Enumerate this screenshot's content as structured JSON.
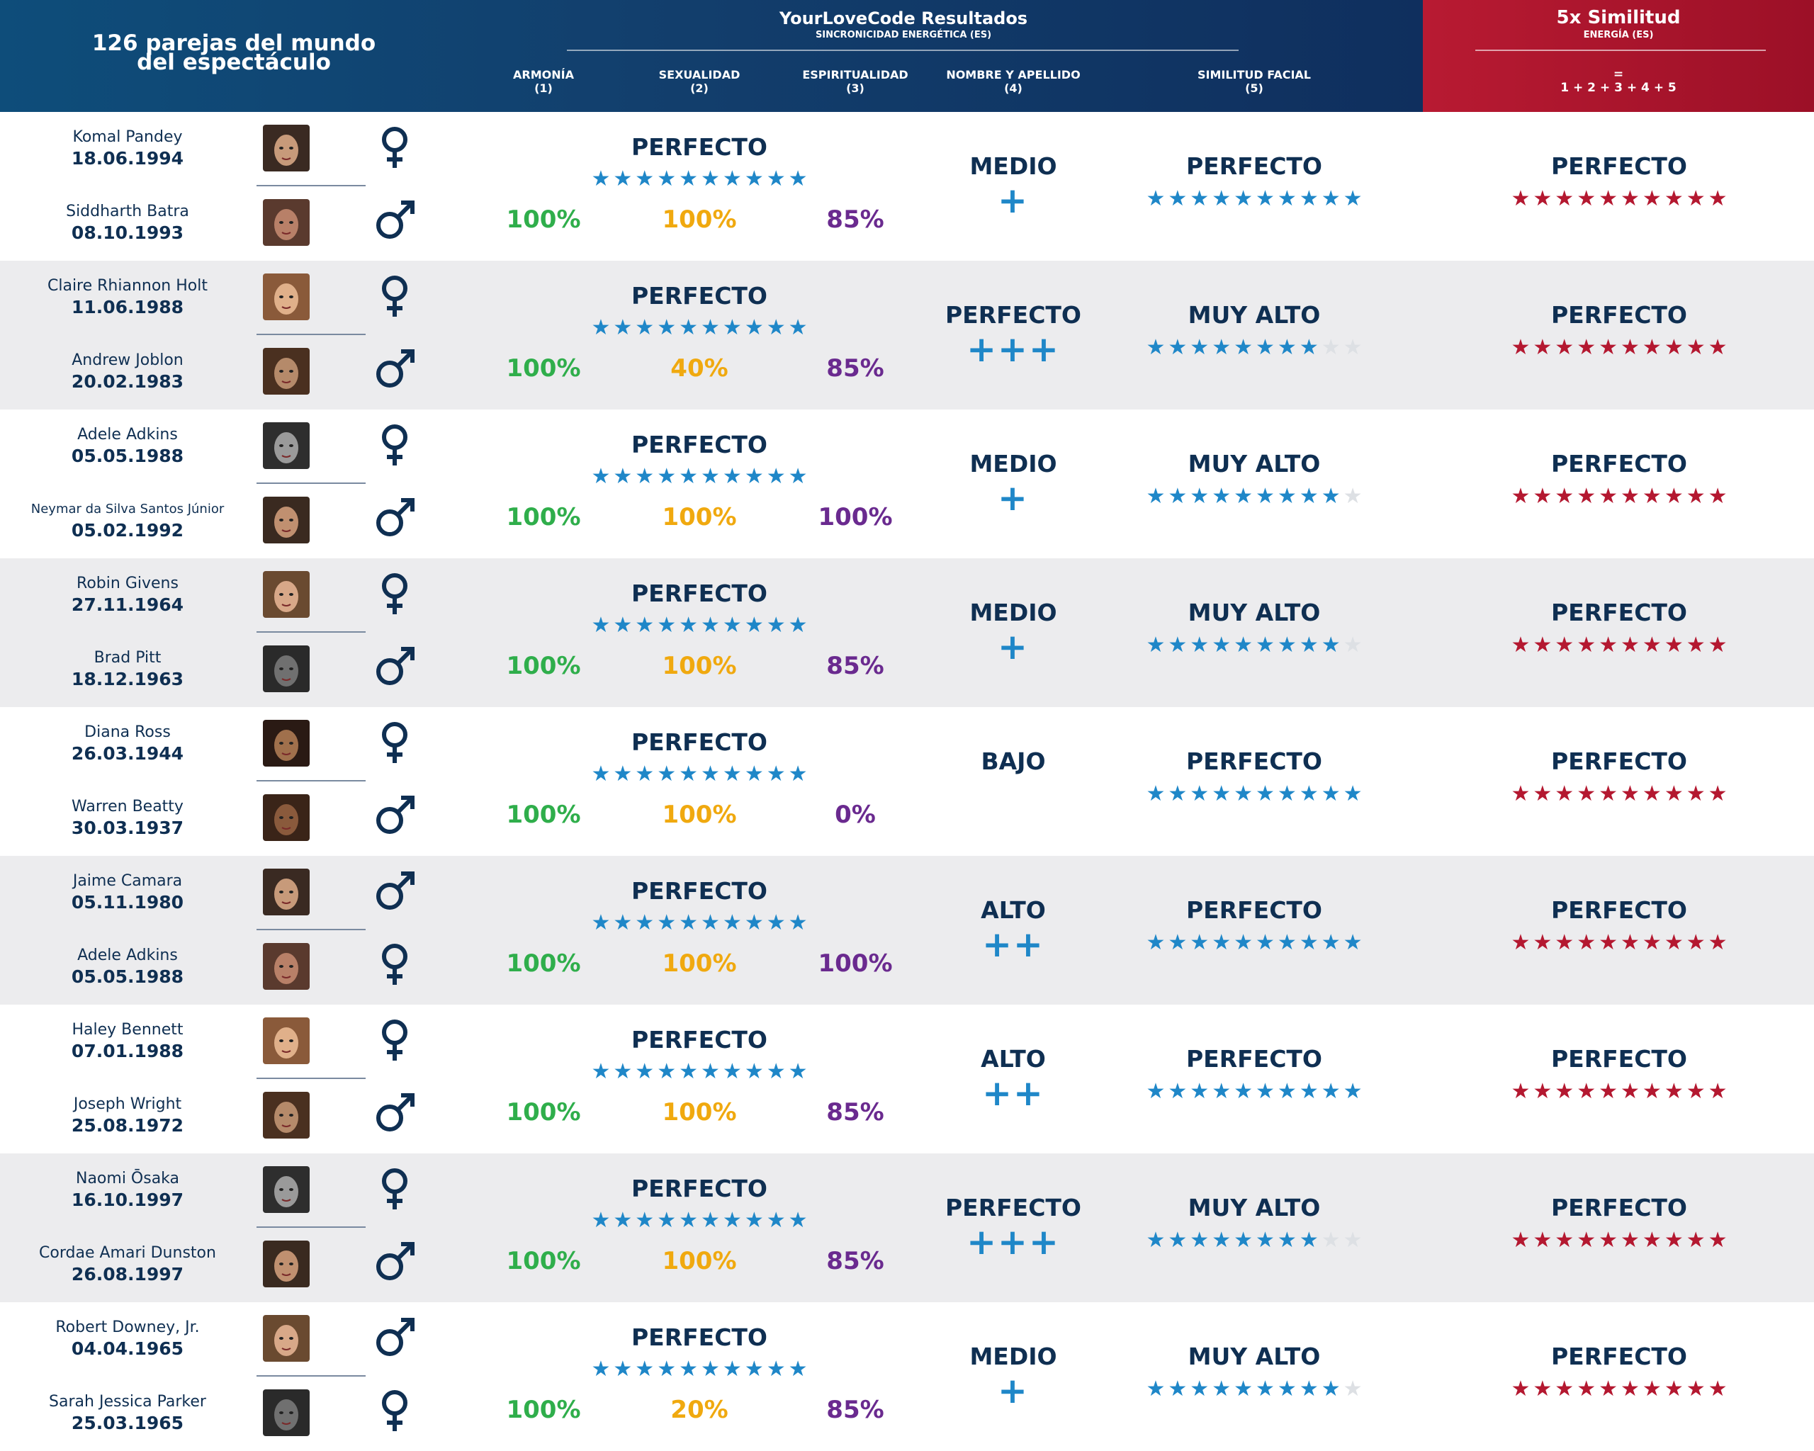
{
  "header": {
    "left_title_line1": "126 parejas del mundo",
    "left_title_line2": "del espectáculo",
    "center_title": "YourLoveCode Resultados",
    "center_sub": "SINCRONICIDAD ENERGÉTICA (ES)",
    "columns": [
      {
        "label": "ARMONÍA",
        "num": "(1)"
      },
      {
        "label": "SEXUALIDAD",
        "num": "(2)"
      },
      {
        "label": "ESPIRITUALIDAD",
        "num": "(3)"
      },
      {
        "label": "NOMBRE Y APELLIDO",
        "num": "(4)"
      },
      {
        "label": "SIMILITUD FACIAL",
        "num": "(5)"
      }
    ],
    "red_title": "5x Similitud",
    "red_sub": "ENERGÍA (ES)",
    "red_formula_eq": "=",
    "red_formula": "1 + 2 + 3 + 4 + 5"
  },
  "colors": {
    "header_blue": "#123f6d",
    "header_red": "#b81a32",
    "star_blue": "#1f87c8",
    "star_red": "#b41830",
    "green": "#2fae4b",
    "orange": "#f0a90f",
    "purple": "#6a2a8f",
    "navy": "#0f2f52"
  },
  "rows": [
    {
      "p1": {
        "name": "Komal Pandey",
        "date": "18.06.1994",
        "gender": "female",
        "icon": "female-icon"
      },
      "p2": {
        "name": "Siddharth Batra",
        "date": "08.10.1993",
        "gender": "male",
        "icon": "male-icon"
      },
      "energy_label": "PERFECTO",
      "energy_stars": 10,
      "armonia": "100%",
      "sexualidad": "100%",
      "espiritualidad": "85%",
      "nombre_label": "MEDIO",
      "nombre_plus": "+",
      "facial_label": "PERFECTO",
      "facial_stars": 10,
      "total_label": "PERFECTO",
      "total_stars": 10
    },
    {
      "p1": {
        "name": "Claire Rhiannon Holt",
        "date": "11.06.1988",
        "gender": "female",
        "icon": "female-icon"
      },
      "p2": {
        "name": "Andrew Joblon",
        "date": "20.02.1983",
        "gender": "male",
        "icon": "male-icon"
      },
      "energy_label": "PERFECTO",
      "energy_stars": 10,
      "armonia": "100%",
      "sexualidad": "40%",
      "espiritualidad": "85%",
      "nombre_label": "PERFECTO",
      "nombre_plus": "+++",
      "facial_label": "MUY ALTO",
      "facial_stars": 8,
      "total_label": "PERFECTO",
      "total_stars": 10
    },
    {
      "p1": {
        "name": "Adele Adkins",
        "date": "05.05.1988",
        "gender": "female",
        "icon": "female-icon"
      },
      "p2": {
        "name": "Neymar da Silva Santos Júnior",
        "date": "05.02.1992",
        "gender": "male",
        "icon": "male-icon",
        "small": true
      },
      "energy_label": "PERFECTO",
      "energy_stars": 10,
      "armonia": "100%",
      "sexualidad": "100%",
      "espiritualidad": "100%",
      "nombre_label": "MEDIO",
      "nombre_plus": "+",
      "facial_label": "MUY ALTO",
      "facial_stars": 9,
      "total_label": "PERFECTO",
      "total_stars": 10
    },
    {
      "p1": {
        "name": "Robin Givens",
        "date": "27.11.1964",
        "gender": "female",
        "icon": "female-icon"
      },
      "p2": {
        "name": "Brad Pitt",
        "date": "18.12.1963",
        "gender": "male",
        "icon": "male-icon"
      },
      "energy_label": "PERFECTO",
      "energy_stars": 10,
      "armonia": "100%",
      "sexualidad": "100%",
      "espiritualidad": "85%",
      "nombre_label": "MEDIO",
      "nombre_plus": "+",
      "facial_label": "MUY ALTO",
      "facial_stars": 9,
      "total_label": "PERFECTO",
      "total_stars": 10
    },
    {
      "p1": {
        "name": "Diana Ross",
        "date": "26.03.1944",
        "gender": "female",
        "icon": "female-icon"
      },
      "p2": {
        "name": "Warren Beatty",
        "date": "30.03.1937",
        "gender": "male",
        "icon": "male-icon"
      },
      "energy_label": "PERFECTO",
      "energy_stars": 10,
      "armonia": "100%",
      "sexualidad": "100%",
      "espiritualidad": "0%",
      "nombre_label": "BAJO",
      "nombre_plus": "",
      "facial_label": "PERFECTO",
      "facial_stars": 10,
      "total_label": "PERFECTO",
      "total_stars": 10
    },
    {
      "p1": {
        "name": "Jaime Camara",
        "date": "05.11.1980",
        "gender": "male",
        "icon": "male-icon"
      },
      "p2": {
        "name": "Adele Adkins",
        "date": "05.05.1988",
        "gender": "female",
        "icon": "female-icon"
      },
      "energy_label": "PERFECTO",
      "energy_stars": 10,
      "armonia": "100%",
      "sexualidad": "100%",
      "espiritualidad": "100%",
      "nombre_label": "ALTO",
      "nombre_plus": "++",
      "facial_label": "PERFECTO",
      "facial_stars": 10,
      "total_label": "PERFECTO",
      "total_stars": 10
    },
    {
      "p1": {
        "name": "Haley Bennett",
        "date": "07.01.1988",
        "gender": "female",
        "icon": "female-icon"
      },
      "p2": {
        "name": "Joseph Wright",
        "date": "25.08.1972",
        "gender": "male",
        "icon": "male-icon"
      },
      "energy_label": "PERFECTO",
      "energy_stars": 10,
      "armonia": "100%",
      "sexualidad": "100%",
      "espiritualidad": "85%",
      "nombre_label": "ALTO",
      "nombre_plus": "++",
      "facial_label": "PERFECTO",
      "facial_stars": 10,
      "total_label": "PERFECTO",
      "total_stars": 10
    },
    {
      "p1": {
        "name": "Naomi Ōsaka",
        "date": "16.10.1997",
        "gender": "female",
        "icon": "female-icon"
      },
      "p2": {
        "name": "Cordae Amari Dunston",
        "date": "26.08.1997",
        "gender": "male",
        "icon": "male-icon"
      },
      "energy_label": "PERFECTO",
      "energy_stars": 10,
      "armonia": "100%",
      "sexualidad": "100%",
      "espiritualidad": "85%",
      "nombre_label": "PERFECTO",
      "nombre_plus": "+++",
      "facial_label": "MUY ALTO",
      "facial_stars": 8,
      "total_label": "PERFECTO",
      "total_stars": 10
    },
    {
      "p1": {
        "name": "Robert Downey, Jr.",
        "date": "04.04.1965",
        "gender": "male",
        "icon": "male-icon"
      },
      "p2": {
        "name": "Sarah Jessica Parker",
        "date": "25.03.1965",
        "gender": "female",
        "icon": "female-icon"
      },
      "energy_label": "PERFECTO",
      "energy_stars": 10,
      "armonia": "100%",
      "sexualidad": "20%",
      "espiritualidad": "85%",
      "nombre_label": "MEDIO",
      "nombre_plus": "+",
      "facial_label": "MUY ALTO",
      "facial_stars": 9,
      "total_label": "PERFECTO",
      "total_stars": 10
    }
  ]
}
